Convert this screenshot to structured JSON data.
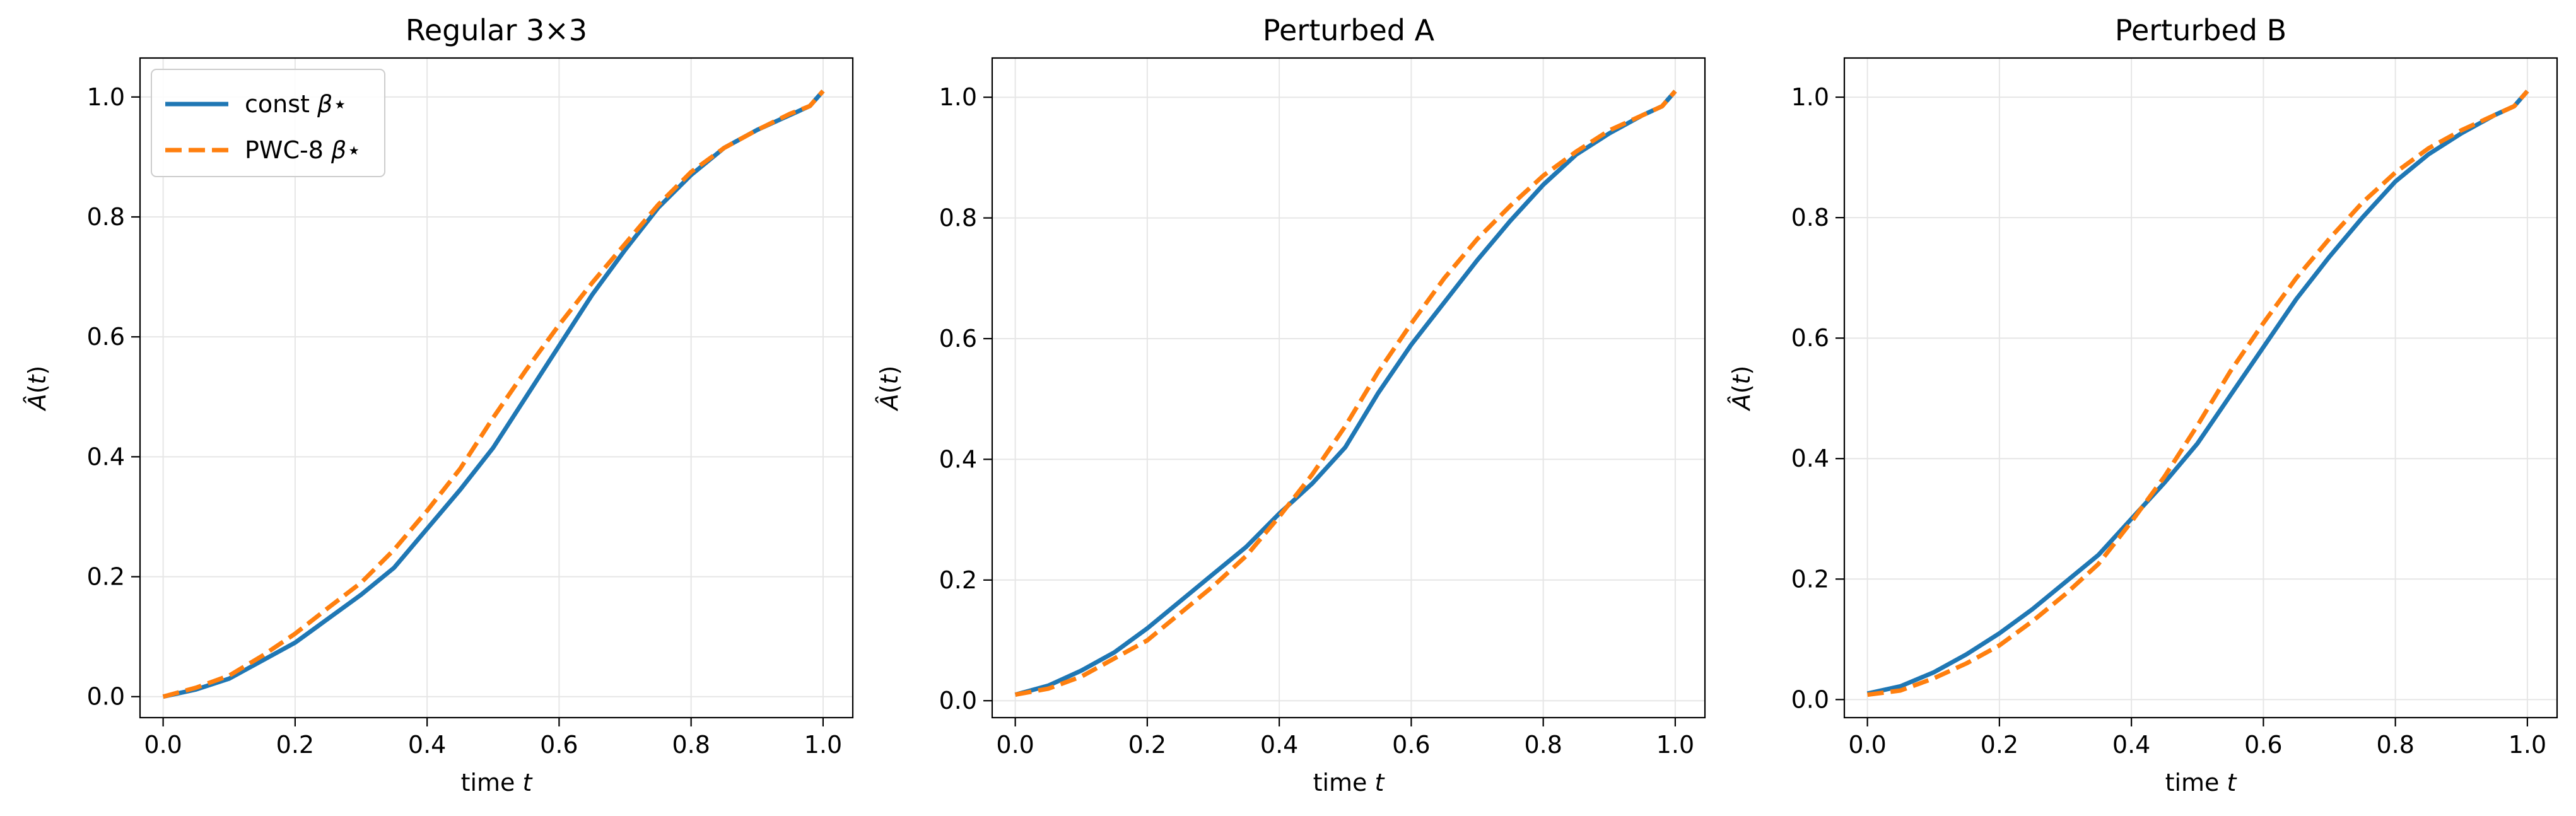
{
  "colors": {
    "const": "#1f77b4",
    "pwc": "#ff7f0e",
    "grid": "#e6e6e6",
    "axis": "#000000"
  },
  "chart_data": [
    {
      "type": "line",
      "title": "Regular 3×3",
      "xlabel": "time t",
      "ylabel": "Â(t)",
      "xlim": [
        -0.035,
        1.045
      ],
      "ylim": [
        -0.035,
        1.065
      ],
      "xticks": [
        "0.0",
        "0.2",
        "0.4",
        "0.6",
        "0.8",
        "1.0"
      ],
      "yticks": [
        "0.0",
        "0.2",
        "0.4",
        "0.6",
        "0.8",
        "1.0"
      ],
      "grid": true,
      "legend": "top-left",
      "series": [
        {
          "name": "const β⋆",
          "style": "solid",
          "x": [
            0.0,
            0.05,
            0.1,
            0.15,
            0.2,
            0.25,
            0.3,
            0.35,
            0.4,
            0.45,
            0.5,
            0.55,
            0.6,
            0.65,
            0.7,
            0.75,
            0.8,
            0.85,
            0.9,
            0.95,
            0.98,
            1.0
          ],
          "y": [
            0.0,
            0.012,
            0.03,
            0.06,
            0.09,
            0.13,
            0.17,
            0.215,
            0.28,
            0.345,
            0.415,
            0.5,
            0.585,
            0.67,
            0.745,
            0.815,
            0.87,
            0.915,
            0.945,
            0.97,
            0.985,
            1.01
          ]
        },
        {
          "name": "PWC-8 β⋆",
          "style": "dashed",
          "x": [
            0.0,
            0.05,
            0.1,
            0.15,
            0.2,
            0.25,
            0.3,
            0.35,
            0.4,
            0.45,
            0.5,
            0.55,
            0.6,
            0.65,
            0.7,
            0.75,
            0.8,
            0.85,
            0.9,
            0.95,
            0.98,
            1.0
          ],
          "y": [
            0.0,
            0.015,
            0.035,
            0.068,
            0.105,
            0.148,
            0.19,
            0.245,
            0.31,
            0.38,
            0.465,
            0.545,
            0.62,
            0.69,
            0.755,
            0.82,
            0.875,
            0.915,
            0.945,
            0.972,
            0.985,
            1.01
          ]
        }
      ]
    },
    {
      "type": "line",
      "title": "Perturbed A",
      "xlabel": "time t",
      "ylabel": "Â(t)",
      "xlim": [
        -0.035,
        1.045
      ],
      "ylim": [
        -0.028,
        1.065
      ],
      "xticks": [
        "0.0",
        "0.2",
        "0.4",
        "0.6",
        "0.8",
        "1.0"
      ],
      "yticks": [
        "0.0",
        "0.2",
        "0.4",
        "0.6",
        "0.8",
        "1.0"
      ],
      "grid": true,
      "legend": "",
      "series": [
        {
          "name": "const β⋆",
          "style": "solid",
          "x": [
            0.0,
            0.05,
            0.1,
            0.15,
            0.2,
            0.25,
            0.3,
            0.35,
            0.4,
            0.45,
            0.5,
            0.55,
            0.6,
            0.65,
            0.7,
            0.75,
            0.8,
            0.85,
            0.9,
            0.95,
            0.98,
            1.0
          ],
          "y": [
            0.01,
            0.025,
            0.05,
            0.08,
            0.12,
            0.165,
            0.21,
            0.255,
            0.31,
            0.36,
            0.42,
            0.51,
            0.59,
            0.66,
            0.73,
            0.795,
            0.855,
            0.905,
            0.94,
            0.97,
            0.985,
            1.01
          ]
        },
        {
          "name": "PWC-8 β⋆",
          "style": "dashed",
          "x": [
            0.0,
            0.05,
            0.1,
            0.15,
            0.2,
            0.25,
            0.3,
            0.35,
            0.4,
            0.45,
            0.5,
            0.55,
            0.6,
            0.65,
            0.7,
            0.75,
            0.8,
            0.85,
            0.9,
            0.95,
            0.98,
            1.0
          ],
          "y": [
            0.01,
            0.02,
            0.04,
            0.07,
            0.1,
            0.145,
            0.19,
            0.24,
            0.305,
            0.375,
            0.455,
            0.545,
            0.625,
            0.7,
            0.765,
            0.82,
            0.87,
            0.91,
            0.945,
            0.97,
            0.985,
            1.01
          ]
        }
      ]
    },
    {
      "type": "line",
      "title": "Perturbed B",
      "xlabel": "time t",
      "ylabel": "Â(t)",
      "xlim": [
        -0.035,
        1.045
      ],
      "ylim": [
        -0.03,
        1.065
      ],
      "xticks": [
        "0.0",
        "0.2",
        "0.4",
        "0.6",
        "0.8",
        "1.0"
      ],
      "yticks": [
        "0.0",
        "0.2",
        "0.4",
        "0.6",
        "0.8",
        "1.0"
      ],
      "grid": true,
      "legend": "",
      "series": [
        {
          "name": "const β⋆",
          "style": "solid",
          "x": [
            0.0,
            0.05,
            0.1,
            0.15,
            0.2,
            0.25,
            0.3,
            0.35,
            0.4,
            0.45,
            0.5,
            0.55,
            0.6,
            0.65,
            0.7,
            0.75,
            0.8,
            0.85,
            0.9,
            0.95,
            0.98,
            1.0
          ],
          "y": [
            0.01,
            0.022,
            0.045,
            0.075,
            0.11,
            0.15,
            0.195,
            0.24,
            0.3,
            0.36,
            0.425,
            0.505,
            0.585,
            0.665,
            0.735,
            0.8,
            0.86,
            0.905,
            0.94,
            0.97,
            0.985,
            1.01
          ]
        },
        {
          "name": "PWC-8 β⋆",
          "style": "dashed",
          "x": [
            0.0,
            0.05,
            0.1,
            0.15,
            0.2,
            0.25,
            0.3,
            0.35,
            0.4,
            0.45,
            0.5,
            0.55,
            0.6,
            0.65,
            0.7,
            0.75,
            0.8,
            0.85,
            0.9,
            0.95,
            0.98,
            1.0
          ],
          "y": [
            0.008,
            0.015,
            0.035,
            0.06,
            0.09,
            0.13,
            0.175,
            0.225,
            0.295,
            0.37,
            0.455,
            0.545,
            0.625,
            0.7,
            0.765,
            0.825,
            0.875,
            0.915,
            0.945,
            0.97,
            0.985,
            1.01
          ]
        }
      ]
    }
  ]
}
